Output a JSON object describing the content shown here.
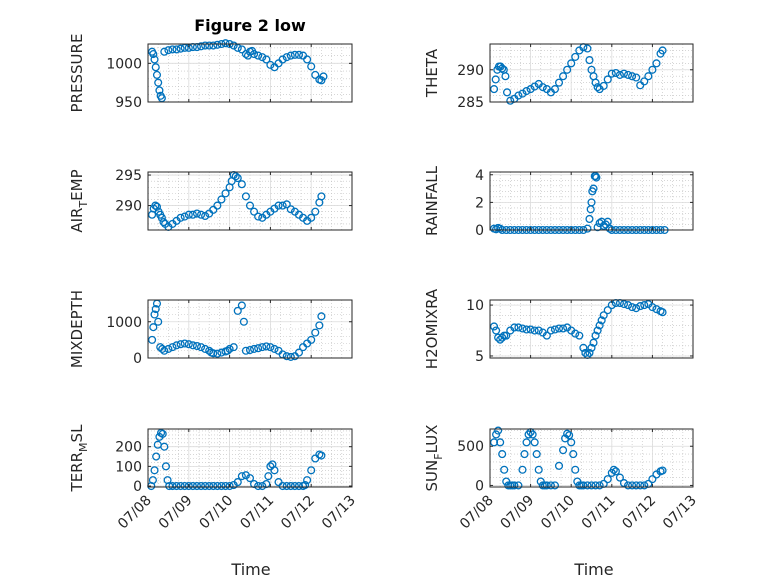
{
  "figure": {
    "title": "Figure 2 low",
    "marker_color": "#0072bd",
    "x_label": "Time"
  },
  "chart_data": [
    {
      "type": "scatter",
      "title": "Figure 2 low",
      "ylabel": "PRESSURE",
      "xlabel": "",
      "xlim": [
        "07/08",
        "07/13"
      ],
      "ylim": [
        950,
        1025
      ],
      "yticks": [
        950,
        1000
      ],
      "grid": true,
      "x": [
        0.1,
        0.13,
        0.16,
        0.19,
        0.22,
        0.25,
        0.28,
        0.31,
        0.34,
        0.4,
        0.5,
        0.6,
        0.7,
        0.8,
        0.9,
        1.0,
        1.1,
        1.2,
        1.3,
        1.4,
        1.5,
        1.6,
        1.7,
        1.8,
        1.9,
        2.0,
        2.1,
        2.2,
        2.3,
        2.4,
        2.45,
        2.5,
        2.55,
        2.6,
        2.7,
        2.8,
        2.9,
        3.0,
        3.1,
        3.2,
        3.3,
        3.4,
        3.5,
        3.6,
        3.7,
        3.8,
        3.9,
        4.0,
        4.1,
        4.2,
        4.25,
        4.3
      ],
      "values": [
        1015,
        1012,
        1005,
        995,
        985,
        975,
        965,
        958,
        955,
        1015,
        1017,
        1018,
        1018,
        1019,
        1020,
        1020,
        1021,
        1021,
        1022,
        1023,
        1023,
        1023,
        1024,
        1025,
        1026,
        1025,
        1023,
        1020,
        1018,
        1012,
        1010,
        1015,
        1016,
        1012,
        1010,
        1008,
        1005,
        998,
        995,
        1000,
        1005,
        1008,
        1010,
        1011,
        1011,
        1010,
        1005,
        996,
        985,
        979,
        978,
        983
      ]
    },
    {
      "type": "scatter",
      "ylabel": "THETA",
      "xlabel": "",
      "xlim": [
        "07/08",
        "07/13"
      ],
      "ylim": [
        285,
        294
      ],
      "yticks": [
        285,
        290
      ],
      "grid": true,
      "x": [
        0.1,
        0.14,
        0.18,
        0.22,
        0.26,
        0.3,
        0.34,
        0.38,
        0.42,
        0.5,
        0.6,
        0.7,
        0.8,
        0.9,
        1.0,
        1.1,
        1.2,
        1.3,
        1.4,
        1.5,
        1.6,
        1.7,
        1.8,
        1.9,
        2.0,
        2.1,
        2.2,
        2.3,
        2.4,
        2.45,
        2.5,
        2.55,
        2.6,
        2.65,
        2.7,
        2.8,
        2.9,
        3.0,
        3.1,
        3.2,
        3.3,
        3.4,
        3.5,
        3.6,
        3.7,
        3.8,
        3.9,
        4.0,
        4.1,
        4.2,
        4.25
      ],
      "values": [
        287,
        288.5,
        290,
        290.5,
        290.5,
        290.2,
        290,
        289,
        286.5,
        285.2,
        285.5,
        286,
        286.3,
        286.7,
        287,
        287.4,
        287.8,
        287.3,
        287,
        286.5,
        287,
        288,
        289,
        290,
        291,
        292,
        293,
        293.5,
        293.3,
        291.5,
        290,
        289,
        288,
        287.3,
        287,
        287.5,
        288.5,
        289.4,
        289.5,
        289.2,
        289.4,
        289.2,
        289,
        288.8,
        287.6,
        288.2,
        289,
        290,
        291,
        292.5,
        293
      ]
    },
    {
      "type": "scatter",
      "ylabel": "AIR_TEMP",
      "xlabel": "",
      "xlim": [
        "07/08",
        "07/13"
      ],
      "ylim": [
        286,
        295.5
      ],
      "yticks": [
        290,
        295
      ],
      "grid": true,
      "x": [
        0.1,
        0.14,
        0.18,
        0.22,
        0.26,
        0.3,
        0.34,
        0.38,
        0.42,
        0.5,
        0.6,
        0.7,
        0.8,
        0.9,
        1.0,
        1.1,
        1.2,
        1.3,
        1.4,
        1.5,
        1.6,
        1.7,
        1.8,
        1.9,
        2.0,
        2.05,
        2.1,
        2.15,
        2.2,
        2.3,
        2.4,
        2.5,
        2.6,
        2.7,
        2.8,
        2.9,
        3.0,
        3.1,
        3.2,
        3.3,
        3.4,
        3.5,
        3.6,
        3.7,
        3.8,
        3.9,
        4.0,
        4.1,
        4.2,
        4.25
      ],
      "values": [
        288.5,
        289.5,
        290,
        289.8,
        289,
        288.5,
        288,
        287.3,
        287,
        286.5,
        287,
        287.5,
        288,
        288.2,
        288.5,
        288.5,
        288.7,
        288.5,
        288.3,
        288.7,
        289.3,
        290,
        291,
        292,
        293,
        294,
        295,
        294.8,
        294.5,
        293.5,
        291.5,
        290,
        289,
        288.2,
        288,
        288.5,
        289,
        289.5,
        290,
        290,
        290.2,
        289.4,
        289,
        288.5,
        288,
        287.5,
        288,
        289,
        290.5,
        291.5
      ]
    },
    {
      "type": "scatter",
      "ylabel": "RAINFALL",
      "xlabel": "",
      "xlim": [
        "07/08",
        "07/13"
      ],
      "ylim": [
        0,
        4.2
      ],
      "yticks": [
        0,
        2,
        4
      ],
      "grid": true,
      "x": [
        0.1,
        0.15,
        0.2,
        0.25,
        0.3,
        0.4,
        0.5,
        0.6,
        0.7,
        0.8,
        0.9,
        1.0,
        1.1,
        1.2,
        1.3,
        1.4,
        1.5,
        1.6,
        1.7,
        1.8,
        1.9,
        2.0,
        2.1,
        2.2,
        2.3,
        2.4,
        2.45,
        2.48,
        2.5,
        2.52,
        2.55,
        2.58,
        2.6,
        2.62,
        2.65,
        2.7,
        2.75,
        2.8,
        2.85,
        2.9,
        2.95,
        3.0,
        3.1,
        3.2,
        3.3,
        3.4,
        3.5,
        3.6,
        3.7,
        3.8,
        3.9,
        4.0,
        4.1,
        4.2,
        4.3
      ],
      "values": [
        0.1,
        0.05,
        0.15,
        0.1,
        0,
        0,
        0,
        0,
        0,
        0,
        0,
        0,
        0,
        0,
        0,
        0,
        0,
        0,
        0,
        0,
        0,
        0,
        0,
        0,
        0,
        0.1,
        0.8,
        1.5,
        2.0,
        2.8,
        3.0,
        3.9,
        3.9,
        3.8,
        0.2,
        0.5,
        0.6,
        0.3,
        0.4,
        0.6,
        0.1,
        0,
        0,
        0,
        0,
        0,
        0,
        0,
        0,
        0,
        0,
        0,
        0,
        0,
        0
      ]
    },
    {
      "type": "scatter",
      "ylabel": "MIXDEPTH",
      "xlabel": "",
      "xlim": [
        "07/08",
        "07/13"
      ],
      "ylim": [
        0,
        1600
      ],
      "yticks": [
        0,
        1000
      ],
      "grid": true,
      "x": [
        0.1,
        0.13,
        0.16,
        0.19,
        0.22,
        0.25,
        0.3,
        0.35,
        0.4,
        0.5,
        0.6,
        0.7,
        0.8,
        0.9,
        1.0,
        1.1,
        1.2,
        1.3,
        1.4,
        1.5,
        1.55,
        1.6,
        1.7,
        1.8,
        1.9,
        1.95,
        2.0,
        2.1,
        2.2,
        2.3,
        2.35,
        2.4,
        2.5,
        2.6,
        2.7,
        2.8,
        2.9,
        3.0,
        3.1,
        3.2,
        3.3,
        3.4,
        3.5,
        3.6,
        3.7,
        3.8,
        3.9,
        4.0,
        4.1,
        4.2,
        4.25
      ],
      "values": [
        500,
        850,
        1200,
        1350,
        1500,
        1000,
        300,
        250,
        200,
        250,
        300,
        350,
        380,
        400,
        380,
        350,
        330,
        300,
        250,
        200,
        150,
        130,
        120,
        150,
        180,
        200,
        250,
        300,
        1300,
        1450,
        1000,
        200,
        220,
        250,
        270,
        300,
        320,
        300,
        250,
        200,
        100,
        50,
        30,
        50,
        150,
        300,
        400,
        500,
        700,
        900,
        1150
      ]
    },
    {
      "type": "scatter",
      "ylabel": "H2OMIXRA",
      "xlabel": "",
      "xlim": [
        "07/08",
        "07/13"
      ],
      "ylim": [
        4.8,
        10.5
      ],
      "yticks": [
        5,
        10
      ],
      "grid": true,
      "x": [
        0.1,
        0.15,
        0.2,
        0.25,
        0.3,
        0.35,
        0.4,
        0.5,
        0.6,
        0.7,
        0.8,
        0.9,
        1.0,
        1.1,
        1.2,
        1.3,
        1.4,
        1.5,
        1.6,
        1.7,
        1.8,
        1.9,
        2.0,
        2.1,
        2.2,
        2.3,
        2.35,
        2.4,
        2.45,
        2.5,
        2.55,
        2.6,
        2.65,
        2.7,
        2.75,
        2.8,
        2.9,
        3.0,
        3.1,
        3.2,
        3.3,
        3.4,
        3.5,
        3.6,
        3.7,
        3.8,
        3.9,
        4.0,
        4.1,
        4.2,
        4.25
      ],
      "values": [
        7.9,
        7.5,
        6.8,
        6.6,
        6.8,
        7.0,
        7.0,
        7.5,
        7.8,
        7.8,
        7.7,
        7.6,
        7.6,
        7.5,
        7.5,
        7.3,
        7.0,
        7.5,
        7.6,
        7.7,
        7.7,
        7.8,
        7.5,
        7.2,
        7.0,
        5.8,
        5.3,
        5.1,
        5.3,
        5.8,
        6.3,
        7.0,
        7.5,
        8.0,
        8.5,
        9.0,
        9.5,
        10.0,
        10.2,
        10.2,
        10.1,
        10.0,
        9.8,
        9.7,
        9.9,
        10.0,
        10.1,
        9.8,
        9.6,
        9.4,
        9.3
      ]
    },
    {
      "type": "scatter",
      "ylabel": "TERR_MSL",
      "xlabel": "Time",
      "xlim": [
        "07/08",
        "07/13"
      ],
      "ylim": [
        -5,
        290
      ],
      "yticks": [
        0,
        100,
        200
      ],
      "grid": true,
      "xticks": [
        "07/08",
        "07/09",
        "07/10",
        "07/11",
        "07/12",
        "07/13"
      ],
      "x": [
        0.08,
        0.12,
        0.16,
        0.2,
        0.24,
        0.28,
        0.32,
        0.36,
        0.4,
        0.44,
        0.48,
        0.52,
        0.6,
        0.7,
        0.8,
        0.9,
        1.0,
        1.1,
        1.2,
        1.3,
        1.4,
        1.5,
        1.6,
        1.7,
        1.8,
        1.9,
        2.0,
        2.1,
        2.2,
        2.3,
        2.4,
        2.5,
        2.6,
        2.7,
        2.8,
        2.9,
        2.95,
        3.0,
        3.05,
        3.1,
        3.2,
        3.3,
        3.4,
        3.5,
        3.6,
        3.7,
        3.8,
        3.85,
        3.9,
        4.0,
        4.1,
        4.2,
        4.25
      ],
      "values": [
        0,
        30,
        80,
        150,
        210,
        250,
        270,
        265,
        200,
        100,
        30,
        0,
        0,
        0,
        0,
        0,
        0,
        0,
        0,
        0,
        0,
        0,
        0,
        0,
        0,
        0,
        0,
        5,
        20,
        50,
        55,
        40,
        10,
        0,
        0,
        10,
        50,
        100,
        110,
        80,
        20,
        0,
        0,
        0,
        0,
        0,
        0,
        5,
        30,
        80,
        140,
        160,
        155
      ]
    },
    {
      "type": "scatter",
      "ylabel": "SUN_FLUX",
      "xlabel": "Time",
      "xlim": [
        "07/08",
        "07/13"
      ],
      "ylim": [
        -20,
        720
      ],
      "yticks": [
        0,
        500
      ],
      "grid": true,
      "xticks": [
        "07/08",
        "07/09",
        "07/10",
        "07/11",
        "07/12",
        "07/13"
      ],
      "x": [
        0.1,
        0.15,
        0.2,
        0.25,
        0.3,
        0.35,
        0.4,
        0.45,
        0.5,
        0.55,
        0.6,
        0.7,
        0.8,
        0.85,
        0.9,
        0.95,
        1.0,
        1.05,
        1.1,
        1.15,
        1.2,
        1.25,
        1.3,
        1.35,
        1.4,
        1.5,
        1.6,
        1.7,
        1.8,
        1.85,
        1.9,
        1.95,
        2.0,
        2.05,
        2.1,
        2.15,
        2.2,
        2.25,
        2.3,
        2.4,
        2.5,
        2.6,
        2.7,
        2.8,
        2.9,
        3.0,
        3.05,
        3.1,
        3.2,
        3.3,
        3.4,
        3.5,
        3.6,
        3.7,
        3.8,
        3.9,
        4.0,
        4.1,
        4.2,
        4.25
      ],
      "values": [
        550,
        650,
        700,
        550,
        400,
        200,
        50,
        0,
        0,
        0,
        0,
        0,
        200,
        400,
        550,
        650,
        680,
        650,
        550,
        400,
        200,
        50,
        0,
        0,
        0,
        0,
        0,
        250,
        450,
        600,
        660,
        640,
        550,
        400,
        200,
        50,
        0,
        0,
        0,
        0,
        0,
        0,
        0,
        20,
        80,
        160,
        200,
        180,
        100,
        30,
        0,
        0,
        0,
        0,
        0,
        20,
        80,
        140,
        180,
        190
      ]
    }
  ]
}
